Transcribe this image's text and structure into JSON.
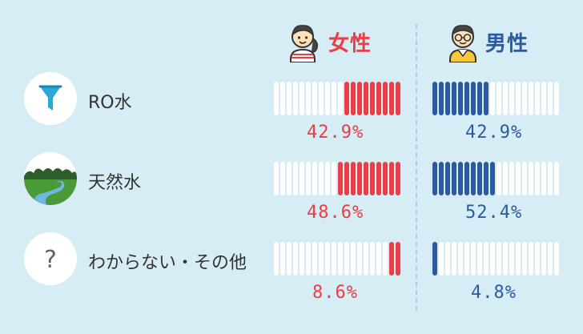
{
  "header": {
    "female_label": "女性",
    "male_label": "男性"
  },
  "colors": {
    "female": "#ea3d46",
    "male": "#2c5aa0",
    "empty_bar": "#ffffff",
    "background": "#d6edf6"
  },
  "chart_data": {
    "type": "bar",
    "categories": [
      "RO水",
      "天然水",
      "わからない・その他"
    ],
    "series": [
      {
        "name": "女性",
        "values": [
          42.9,
          48.6,
          8.6
        ],
        "labels": [
          "42.9%",
          "48.6%",
          "8.6%"
        ]
      },
      {
        "name": "男性",
        "values": [
          42.9,
          52.4,
          4.8
        ],
        "labels": [
          "42.9%",
          "52.4%",
          "4.8%"
        ]
      }
    ],
    "ylim": [
      0,
      100
    ]
  },
  "rows": [
    {
      "icon": "funnel-icon",
      "label": "RO水"
    },
    {
      "icon": "landscape-river-icon",
      "label": "天然水"
    },
    {
      "icon": "question-mark-icon",
      "label": "わからない・その他"
    }
  ]
}
